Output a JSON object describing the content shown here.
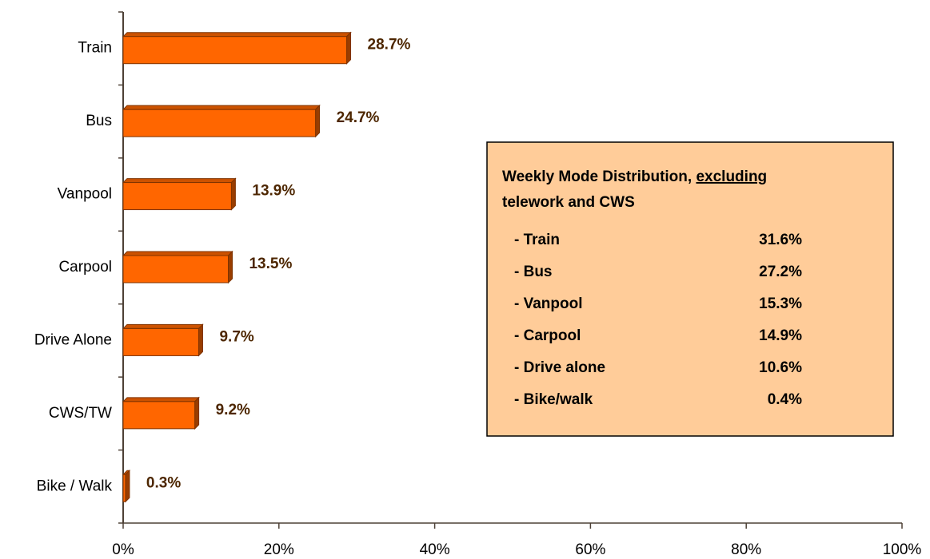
{
  "chart_data": {
    "type": "bar",
    "orientation": "horizontal",
    "categories": [
      "Train",
      "Bus",
      "Vanpool",
      "Carpool",
      "Drive Alone",
      "CWS/TW",
      "Bike / Walk"
    ],
    "values": [
      28.7,
      24.7,
      13.9,
      13.5,
      9.7,
      9.2,
      0.3
    ],
    "value_labels": [
      "28.7%",
      "24.7%",
      "13.9%",
      "13.5%",
      "9.7%",
      "9.2%",
      "0.3%"
    ],
    "color": "#ff6600",
    "xlim": [
      0,
      100
    ],
    "xticks": [
      {
        "value": 0,
        "label": "0%"
      },
      {
        "value": 20,
        "label": "20%"
      },
      {
        "value": 40,
        "label": "40%"
      },
      {
        "value": 60,
        "label": "60%"
      },
      {
        "value": 80,
        "label": "80%"
      },
      {
        "value": 100,
        "label": "100%"
      }
    ],
    "grid": false,
    "annotation": {
      "title_start": "Weekly Mode Distribution,",
      "title_underlined": "excluding",
      "title_end": "telework and CWS",
      "rows": [
        [
          "- Train",
          "31.6%"
        ],
        [
          "- Bus",
          "27.2%"
        ],
        [
          "- Vanpool",
          "15.3%"
        ],
        [
          "- Carpool",
          "14.9%"
        ],
        [
          "- Drive alone",
          "10.6%"
        ],
        [
          "- Bike/walk",
          "0.4%"
        ]
      ]
    }
  }
}
